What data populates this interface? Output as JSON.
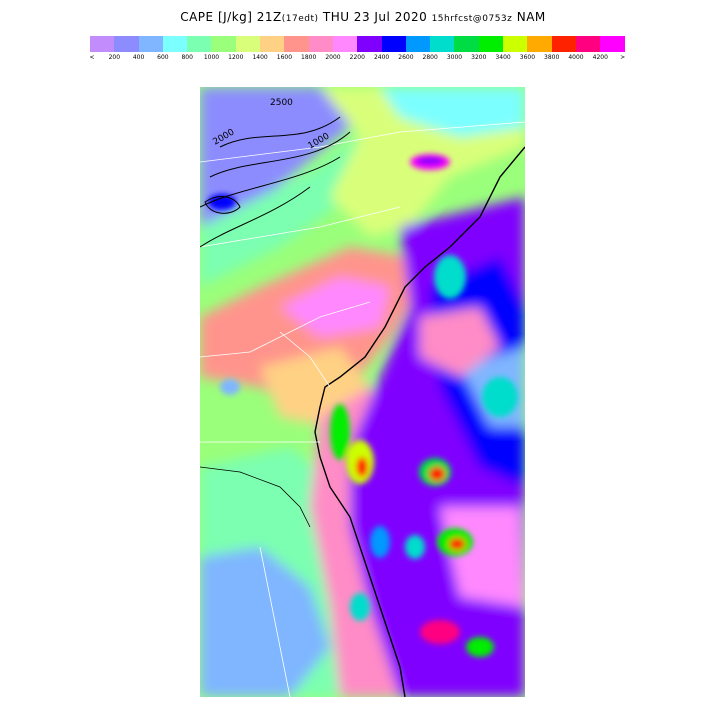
{
  "header": {
    "title_main": "CAPE [J/kg] 21Z",
    "title_local": "(17edt)",
    "title_date": "THU 23 Jul 2020",
    "title_run": "15hrfcst@0753z",
    "title_model": "NAM"
  },
  "legend": {
    "less_than": "<",
    "greater_than": ">",
    "labels": [
      "200",
      "400",
      "600",
      "800",
      "1000",
      "1200",
      "1400",
      "1600",
      "1800",
      "2000",
      "2200",
      "2400",
      "2600",
      "2800",
      "3000",
      "3200",
      "3400",
      "3600",
      "3800",
      "4000",
      "4200"
    ],
    "colors": [
      "#c38cfc",
      "#8c8cff",
      "#7fb6ff",
      "#7bffff",
      "#7bffb0",
      "#9aff7a",
      "#d9ff7a",
      "#ffd184",
      "#ff948c",
      "#ff8cc6",
      "#ff88ff",
      "#8000ff",
      "#0000ff",
      "#0099ff",
      "#00ddcc",
      "#00dd44",
      "#00ee00",
      "#ccff00",
      "#ffaa00",
      "#ff2200",
      "#ff0080",
      "#ff00ff"
    ]
  },
  "map": {
    "contour_labels": [
      "2500",
      "2000",
      "1000"
    ],
    "variable": "CAPE",
    "units": "J/kg"
  }
}
